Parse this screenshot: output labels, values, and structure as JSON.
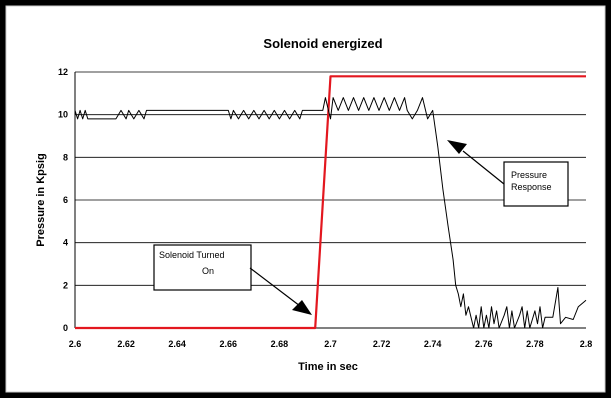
{
  "chart_data": {
    "type": "line",
    "title": "Solenoid energized",
    "xlabel": "Time in sec",
    "ylabel": "Pressure in Kpsig",
    "xlim": [
      2.6,
      2.8
    ],
    "ylim": [
      0,
      12
    ],
    "x_ticks": [
      "2.6",
      "2.62",
      "2.64",
      "2.66",
      "2.68",
      "2.7",
      "2.72",
      "2.74",
      "2.76",
      "2.78",
      "2.8"
    ],
    "y_ticks": [
      "0",
      "2",
      "4",
      "6",
      "8",
      "10",
      "12"
    ],
    "grid": "horizontal",
    "legend": "none",
    "series": [
      {
        "color": "#e3171f",
        "points": [
          [
            2.6,
            0.0
          ],
          [
            2.694,
            0.0
          ],
          [
            2.7,
            11.8
          ],
          [
            2.8,
            11.8
          ]
        ]
      },
      {
        "color": "#000000",
        "points": [
          [
            2.6,
            10.2
          ],
          [
            2.601,
            9.8
          ],
          [
            2.602,
            10.2
          ],
          [
            2.603,
            9.8
          ],
          [
            2.604,
            10.2
          ],
          [
            2.605,
            9.8
          ],
          [
            2.616,
            9.8
          ],
          [
            2.618,
            10.2
          ],
          [
            2.62,
            9.8
          ],
          [
            2.621,
            10.2
          ],
          [
            2.623,
            9.8
          ],
          [
            2.625,
            10.2
          ],
          [
            2.627,
            9.8
          ],
          [
            2.628,
            10.2
          ],
          [
            2.63,
            10.2
          ],
          [
            2.66,
            10.2
          ],
          [
            2.661,
            9.8
          ],
          [
            2.662,
            10.2
          ],
          [
            2.664,
            9.8
          ],
          [
            2.666,
            10.2
          ],
          [
            2.668,
            9.8
          ],
          [
            2.67,
            10.2
          ],
          [
            2.672,
            9.8
          ],
          [
            2.674,
            10.2
          ],
          [
            2.676,
            9.8
          ],
          [
            2.678,
            10.2
          ],
          [
            2.68,
            9.8
          ],
          [
            2.682,
            10.2
          ],
          [
            2.684,
            9.8
          ],
          [
            2.686,
            10.2
          ],
          [
            2.688,
            9.8
          ],
          [
            2.689,
            10.2
          ],
          [
            2.697,
            10.2
          ],
          [
            2.698,
            10.8
          ],
          [
            2.7,
            9.8
          ],
          [
            2.701,
            10.8
          ],
          [
            2.703,
            10.2
          ],
          [
            2.705,
            10.8
          ],
          [
            2.707,
            10.2
          ],
          [
            2.709,
            10.8
          ],
          [
            2.711,
            10.2
          ],
          [
            2.713,
            10.8
          ],
          [
            2.715,
            10.2
          ],
          [
            2.717,
            10.8
          ],
          [
            2.719,
            10.2
          ],
          [
            2.721,
            10.8
          ],
          [
            2.723,
            10.2
          ],
          [
            2.725,
            10.8
          ],
          [
            2.727,
            10.2
          ],
          [
            2.729,
            10.8
          ],
          [
            2.73,
            10.2
          ],
          [
            2.732,
            9.8
          ],
          [
            2.734,
            10.2
          ],
          [
            2.736,
            10.8
          ],
          [
            2.738,
            9.8
          ],
          [
            2.74,
            10.2
          ],
          [
            2.742,
            8.5
          ],
          [
            2.744,
            6.5
          ],
          [
            2.746,
            4.8
          ],
          [
            2.748,
            3.2
          ],
          [
            2.749,
            2.0
          ],
          [
            2.75,
            1.6
          ],
          [
            2.751,
            1.0
          ],
          [
            2.752,
            1.6
          ],
          [
            2.753,
            0.6
          ],
          [
            2.754,
            1.0
          ],
          [
            2.755,
            0.5
          ],
          [
            2.756,
            0.0
          ],
          [
            2.757,
            0.6
          ],
          [
            2.758,
            0.0
          ],
          [
            2.759,
            1.0
          ],
          [
            2.76,
            0.0
          ],
          [
            2.761,
            0.6
          ],
          [
            2.762,
            0.0
          ],
          [
            2.763,
            1.0
          ],
          [
            2.764,
            0.2
          ],
          [
            2.765,
            0.8
          ],
          [
            2.766,
            0.0
          ],
          [
            2.768,
            0.6
          ],
          [
            2.769,
            1.0
          ],
          [
            2.77,
            0.0
          ],
          [
            2.771,
            0.8
          ],
          [
            2.772,
            0.0
          ],
          [
            2.774,
            0.6
          ],
          [
            2.775,
            1.0
          ],
          [
            2.776,
            0.0
          ],
          [
            2.777,
            0.8
          ],
          [
            2.778,
            0.0
          ],
          [
            2.78,
            0.8
          ],
          [
            2.781,
            0.2
          ],
          [
            2.782,
            1.0
          ],
          [
            2.783,
            0.0
          ],
          [
            2.784,
            0.5
          ],
          [
            2.787,
            0.5
          ],
          [
            2.789,
            1.9
          ],
          [
            2.79,
            0.2
          ],
          [
            2.792,
            0.5
          ],
          [
            2.795,
            0.4
          ],
          [
            2.797,
            1.0
          ],
          [
            2.8,
            1.3
          ]
        ]
      }
    ],
    "annotations": [
      {
        "lines": [
          "Solenoid Turned",
          "On"
        ],
        "arrow_to": [
          2.693,
          0.2
        ]
      },
      {
        "lines": [
          "Pressure",
          "Response"
        ],
        "arrow_to": [
          2.745,
          8.5
        ]
      }
    ]
  }
}
